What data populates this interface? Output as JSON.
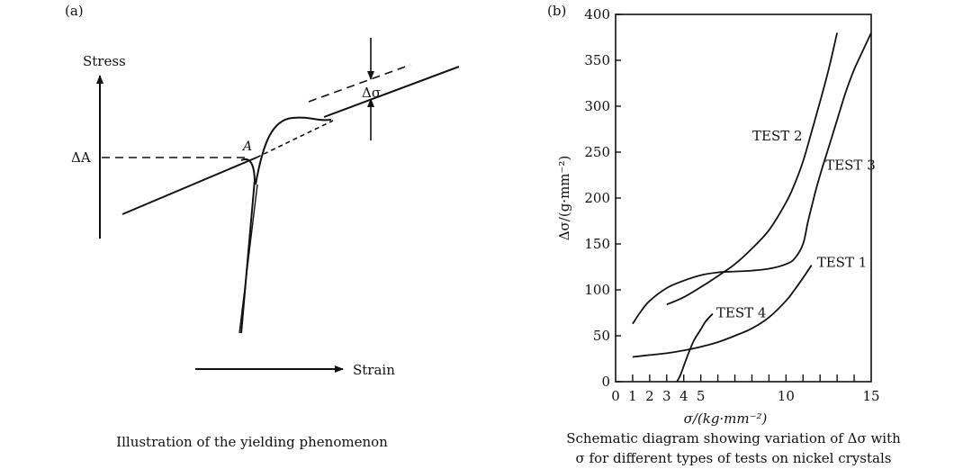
{
  "panel_a": {
    "label": "(a)",
    "y_axis_label": "Stress",
    "x_axis_label": "Strain",
    "delta_a_label": "ΔA",
    "point_a_label": "A",
    "delta_sigma_label": "Δσ",
    "caption": "Illustration of the yielding phenomenon"
  },
  "panel_b": {
    "label": "(b)",
    "caption_line1": "Schematic diagram showing variation of Δσ with",
    "caption_line2": "σ for different types of tests on nickel crystals"
  },
  "chart_data": {
    "type": "line",
    "title": "",
    "xlabel": "σ/(kg·mm⁻²)",
    "ylabel": "Δσ/(g·mm⁻²)",
    "xlim": [
      0,
      15
    ],
    "ylim": [
      0,
      400
    ],
    "x_ticks": [
      0,
      1,
      2,
      3,
      4,
      5,
      10,
      15
    ],
    "y_ticks": [
      0,
      50,
      100,
      150,
      200,
      250,
      300,
      350,
      400
    ],
    "grid": false,
    "series": [
      {
        "name": "TEST 1",
        "x": [
          1.0,
          2.0,
          3.0,
          4.0,
          5.0,
          6.0,
          7.0,
          8.0,
          9.0,
          10.0,
          10.5,
          11.0,
          11.5
        ],
        "y": [
          27,
          29,
          31,
          34,
          38,
          43,
          50,
          58,
          70,
          88,
          100,
          113,
          127
        ]
      },
      {
        "name": "TEST 2",
        "x": [
          3.0,
          4.0,
          5.0,
          6.0,
          7.0,
          8.0,
          9.0,
          10.0,
          10.5,
          11.0,
          11.5,
          12.0,
          12.5,
          13.0
        ],
        "y": [
          84,
          92,
          103,
          115,
          128,
          145,
          165,
          195,
          215,
          240,
          272,
          305,
          340,
          380
        ]
      },
      {
        "name": "TEST 3",
        "x": [
          1.0,
          1.5,
          2.0,
          3.0,
          4.0,
          5.0,
          6.0,
          7.0,
          8.0,
          9.0,
          10.0,
          10.5,
          11.0,
          11.3,
          11.7,
          12.0,
          12.5,
          13.0,
          13.5,
          14.0,
          14.5,
          15.0
        ],
        "y": [
          63,
          77,
          88,
          102,
          110,
          116,
          119,
          120,
          121,
          123,
          128,
          134,
          150,
          175,
          205,
          225,
          255,
          285,
          315,
          340,
          360,
          380
        ]
      },
      {
        "name": "TEST 4",
        "x": [
          3.6,
          3.8,
          4.0,
          4.3,
          4.6,
          5.0,
          5.3,
          5.7
        ],
        "y": [
          0,
          7,
          17,
          32,
          45,
          57,
          66,
          74
        ]
      }
    ]
  }
}
